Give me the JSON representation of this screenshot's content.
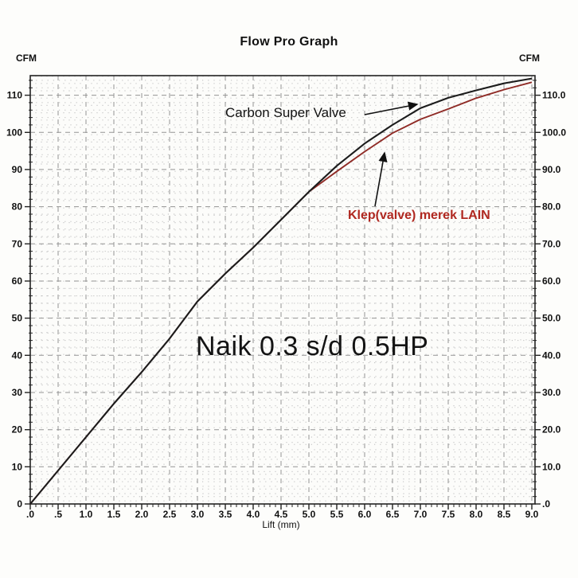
{
  "chart_data": {
    "type": "line",
    "title": "Flow Pro Graph",
    "xlabel": "Lift (mm)",
    "ylabel_left": "CFM",
    "ylabel_right": "CFM",
    "xlim": [
      0,
      9.05
    ],
    "ylim": [
      0,
      115.3
    ],
    "grid": "major dashed + minor dotted",
    "legend_position": "inline annotations with arrows",
    "x_major_step": 0.5,
    "x_minor_step": 0.1,
    "y_major_step": 10,
    "y_minor_step": 2,
    "x_tick_labels": [
      ".0",
      ".5",
      "1.0",
      "1.5",
      "2.0",
      "2.5",
      "3.0",
      "3.5",
      "4.0",
      "4.5",
      "5.0",
      "5.5",
      "6.0",
      "6.5",
      "7.0",
      "7.5",
      "8.0",
      "8.5",
      "9.0"
    ],
    "y_tick_labels_left": [
      "0",
      "10",
      "20",
      "30",
      "40",
      "50",
      "60",
      "70",
      "80",
      "90",
      "100",
      "110"
    ],
    "y_tick_labels_right": [
      ".0",
      "10.0",
      "20.0",
      "30.0",
      "40.0",
      "50.0",
      "60.0",
      "70.0",
      "80.0",
      "90.0",
      "100.0",
      "110.0"
    ],
    "x": [
      0,
      0.5,
      1.0,
      1.5,
      2.0,
      2.5,
      3.0,
      3.5,
      4.0,
      4.5,
      5.0,
      5.5,
      6.0,
      6.5,
      7.0,
      7.5,
      8.0,
      8.5,
      9.0
    ],
    "series": [
      {
        "name": "Carbon Super Valve",
        "color": "#1c1c1c",
        "values": [
          0,
          9,
          18,
          27,
          35.5,
          44.5,
          54.5,
          62,
          69,
          76.5,
          84,
          91,
          97,
          102,
          106.5,
          109.3,
          111.3,
          113.2,
          114.5
        ]
      },
      {
        "name": "Klep(valve) merek LAIN",
        "color": "#8f2b26",
        "values": [
          0,
          9,
          18,
          27,
          35.5,
          44.5,
          54.5,
          62,
          69,
          76.5,
          84,
          89.5,
          94.8,
          99.8,
          103.5,
          106.3,
          109.2,
          111.5,
          113.5
        ]
      }
    ],
    "annotations": {
      "carbon_label": {
        "text": "Carbon Super Valve",
        "color": "#111111"
      },
      "klep_label": {
        "text": "Klep(valve) merek LAIN",
        "color": "#b02820"
      },
      "naik_label": {
        "text": "Naik 0.3 s/d 0.5HP",
        "color": "#141414"
      }
    },
    "colors": {
      "major_grid": "#949494",
      "minor_grid": "#bdbdbd",
      "plot_border": "#222222",
      "plot_background": "#fcfcfa"
    }
  }
}
